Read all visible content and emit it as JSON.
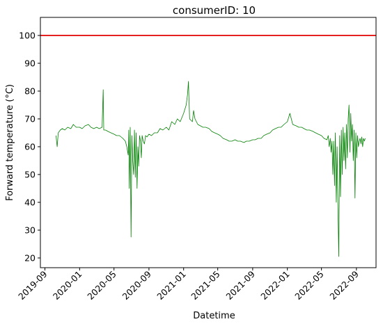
{
  "chart_data": {
    "type": "line",
    "title": "consumerID: 10",
    "xlabel": "Datetime",
    "ylabel": "Forward temperature ($^\\circ$C)",
    "ylabel_display": "Forward temperature (°C)",
    "xlim": [
      "2019-08-16",
      "2022-11-09"
    ],
    "ylim": [
      16.5,
      106.5
    ],
    "x_ticks": [
      "2019-09",
      "2020-01",
      "2020-05",
      "2020-09",
      "2021-01",
      "2021-05",
      "2021-09",
      "2022-01",
      "2022-05",
      "2022-09"
    ],
    "y_ticks": [
      20,
      30,
      40,
      50,
      60,
      70,
      80,
      90,
      100
    ],
    "grid": false,
    "reference_line": {
      "value": 100,
      "color": "#e00000"
    },
    "series": [
      {
        "color": "#008000",
        "x": [
          "2019-10-10",
          "2019-10-14",
          "2019-10-18",
          "2019-10-25",
          "2019-11-01",
          "2019-11-10",
          "2019-11-20",
          "2019-12-01",
          "2019-12-10",
          "2019-12-20",
          "2020-01-01",
          "2020-01-10",
          "2020-01-20",
          "2020-02-01",
          "2020-02-10",
          "2020-02-20",
          "2020-03-01",
          "2020-03-10",
          "2020-03-20",
          "2020-03-24",
          "2020-03-26",
          "2020-04-01",
          "2020-04-10",
          "2020-04-20",
          "2020-05-01",
          "2020-05-10",
          "2020-05-20",
          "2020-06-01",
          "2020-06-10",
          "2020-06-15",
          "2020-06-20",
          "2020-06-22",
          "2020-06-24",
          "2020-06-27",
          "2020-06-30",
          "2020-07-03",
          "2020-07-06",
          "2020-07-09",
          "2020-07-12",
          "2020-07-15",
          "2020-07-18",
          "2020-07-21",
          "2020-07-24",
          "2020-07-27",
          "2020-07-30",
          "2020-08-02",
          "2020-08-05",
          "2020-08-08",
          "2020-08-12",
          "2020-08-16",
          "2020-08-20",
          "2020-08-25",
          "2020-09-01",
          "2020-09-10",
          "2020-09-20",
          "2020-10-01",
          "2020-10-10",
          "2020-10-20",
          "2020-11-01",
          "2020-11-10",
          "2020-11-20",
          "2020-12-01",
          "2020-12-10",
          "2020-12-20",
          "2021-01-01",
          "2021-01-10",
          "2021-01-15",
          "2021-01-18",
          "2021-01-22",
          "2021-02-01",
          "2021-02-05",
          "2021-02-10",
          "2021-02-20",
          "2021-03-01",
          "2021-03-10",
          "2021-03-20",
          "2021-04-01",
          "2021-04-10",
          "2021-04-20",
          "2021-05-01",
          "2021-05-10",
          "2021-05-20",
          "2021-06-01",
          "2021-06-10",
          "2021-06-20",
          "2021-07-01",
          "2021-07-10",
          "2021-07-20",
          "2021-08-01",
          "2021-08-10",
          "2021-08-20",
          "2021-09-01",
          "2021-09-10",
          "2021-09-20",
          "2021-10-01",
          "2021-10-10",
          "2021-10-20",
          "2021-11-01",
          "2021-11-10",
          "2021-11-20",
          "2021-12-01",
          "2021-12-10",
          "2021-12-20",
          "2022-01-01",
          "2022-01-10",
          "2022-01-20",
          "2022-02-01",
          "2022-02-10",
          "2022-02-20",
          "2022-03-01",
          "2022-03-10",
          "2022-03-20",
          "2022-04-01",
          "2022-04-10",
          "2022-04-20",
          "2022-05-01",
          "2022-05-10",
          "2022-05-20",
          "2022-05-25",
          "2022-05-28",
          "2022-06-01",
          "2022-06-04",
          "2022-06-07",
          "2022-06-10",
          "2022-06-13",
          "2022-06-16",
          "2022-06-19",
          "2022-06-22",
          "2022-06-25",
          "2022-06-28",
          "2022-07-01",
          "2022-07-04",
          "2022-07-07",
          "2022-07-10",
          "2022-07-13",
          "2022-07-16",
          "2022-07-19",
          "2022-07-22",
          "2022-07-25",
          "2022-07-28",
          "2022-07-31",
          "2022-08-03",
          "2022-08-06",
          "2022-08-09",
          "2022-08-12",
          "2022-08-15",
          "2022-08-18",
          "2022-08-21",
          "2022-08-24",
          "2022-08-27",
          "2022-08-30",
          "2022-09-02",
          "2022-09-05",
          "2022-09-08",
          "2022-09-11",
          "2022-09-14",
          "2022-09-17",
          "2022-09-20",
          "2022-09-23",
          "2022-09-26",
          "2022-09-29",
          "2022-10-02"
        ],
        "y": [
          64,
          60,
          65,
          66,
          66.5,
          66,
          67,
          66.5,
          68,
          67,
          67,
          66.5,
          67.5,
          68,
          67,
          66.5,
          67,
          66.5,
          67,
          80.5,
          66,
          66,
          65.5,
          65,
          64.5,
          64,
          64,
          63,
          62,
          60,
          57,
          66,
          45,
          67,
          27.5,
          64,
          55,
          50,
          66,
          49,
          65,
          45,
          60,
          53,
          64,
          62,
          56,
          64,
          62,
          61,
          64,
          63.5,
          64.5,
          64,
          65,
          65,
          66.5,
          66,
          67,
          66,
          69,
          68,
          70,
          69,
          72,
          75,
          79,
          83.5,
          70,
          69,
          73,
          70,
          68,
          67.5,
          67,
          67,
          66.5,
          65.5,
          65,
          64.5,
          64,
          63,
          62.5,
          62,
          62,
          62.5,
          62,
          62,
          61.5,
          62,
          62,
          62.5,
          62.5,
          63,
          63,
          64,
          64.5,
          65,
          66,
          66.5,
          67,
          67,
          68,
          69,
          72,
          68,
          67.5,
          67,
          67,
          66.5,
          66,
          66,
          65.5,
          65,
          64.5,
          64,
          63,
          62.5,
          64,
          60,
          63,
          58,
          62,
          50,
          62,
          46,
          65,
          40,
          60,
          38.5,
          20.5,
          64,
          42,
          66,
          50,
          67,
          55,
          65,
          52,
          68,
          56,
          70,
          75,
          58,
          72,
          62,
          68,
          55,
          66,
          41.5,
          65,
          56,
          64,
          60,
          62,
          63,
          61,
          63.5,
          60,
          63,
          62,
          63
        ]
      }
    ]
  }
}
